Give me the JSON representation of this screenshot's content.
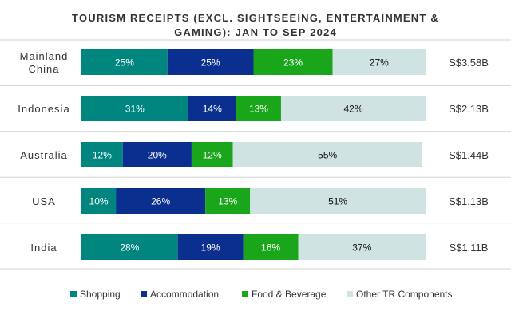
{
  "chart_data": {
    "type": "bar",
    "orientation": "horizontal",
    "stacked": true,
    "percent_stacked": true,
    "title": "TOURISM RECEIPTS (EXCL. SIGHTSEEING, ENTERTAINMENT & GAMING): JAN TO SEP 2024",
    "title_lines": [
      "TOURISM RECEIPTS (EXCL. SIGHTSEEING, ENTERTAINMENT &",
      "GAMING): JAN TO SEP 2024"
    ],
    "xlabel": "",
    "ylabel": "",
    "xlim": [
      0,
      100
    ],
    "grid": true,
    "legend_position": "bottom",
    "categories": [
      {
        "label": [
          "Mainland",
          "China"
        ],
        "total": "S$3.58B"
      },
      {
        "label": [
          "Indonesia"
        ],
        "total": "S$2.13B"
      },
      {
        "label": [
          "Australia"
        ],
        "total": "S$1.44B"
      },
      {
        "label": [
          "USA"
        ],
        "total": "S$1.13B"
      },
      {
        "label": [
          "India"
        ],
        "total": "S$1.11B"
      }
    ],
    "series": [
      {
        "name": "Shopping",
        "color": "#00857f",
        "values": [
          25,
          31,
          12,
          10,
          28
        ]
      },
      {
        "name": "Accommodation",
        "color": "#0b2f8e",
        "values": [
          25,
          14,
          20,
          26,
          19
        ]
      },
      {
        "name": "Food & Beverage",
        "color": "#1aa61a",
        "values": [
          23,
          13,
          12,
          13,
          16
        ]
      },
      {
        "name": "Other TR Components",
        "color": "#cfe3e2",
        "values": [
          27,
          42,
          55,
          51,
          37
        ]
      }
    ],
    "value_suffix": "%",
    "label_colors": {
      "on_dark": "#ffffff",
      "on_light": "#111111"
    },
    "text_color": "#333333",
    "title_color": "#333333",
    "grid_color": "#d0d0d0"
  }
}
